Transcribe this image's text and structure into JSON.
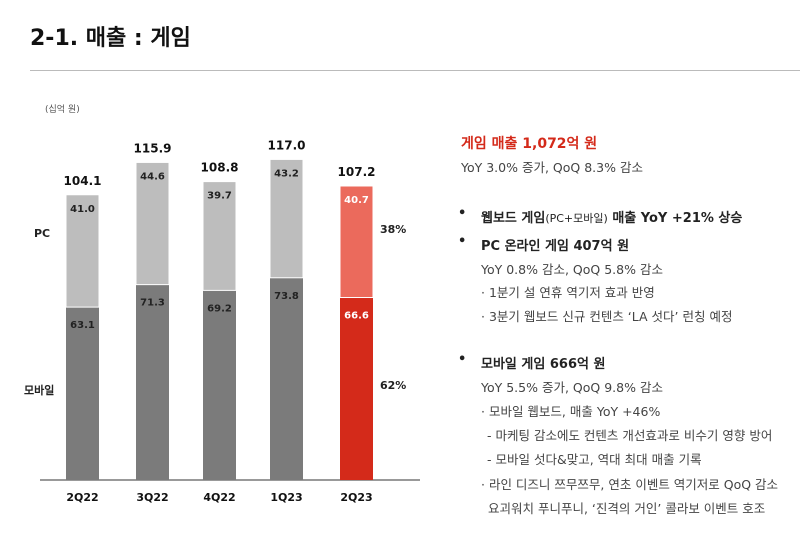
{
  "title": "2-1. 매출 : 게임",
  "chart_data": {
    "type": "bar",
    "stacked": true,
    "unit_label": "(십억 원)",
    "categories": [
      "2Q22",
      "3Q22",
      "4Q22",
      "1Q23",
      "2Q23"
    ],
    "series": [
      {
        "name": "모바일",
        "values": [
          63.1,
          71.3,
          69.2,
          73.8,
          66.6
        ]
      },
      {
        "name": "PC",
        "values": [
          41.0,
          44.6,
          39.7,
          43.2,
          40.7
        ]
      }
    ],
    "totals": [
      "104.1",
      "115.9",
      "108.8",
      "117.0",
      "107.2"
    ],
    "share_labels": {
      "pc": "38%",
      "mobile": "62%"
    },
    "colors": {
      "mobile": "#7b7b7b",
      "pc": "#bdbdbd",
      "mobile_highlight": "#d42a1a",
      "pc_highlight": "#eb6a5c"
    },
    "highlight_category": "2Q23",
    "ylim": [
      0,
      130
    ]
  },
  "summary": {
    "headline": "게임 매출 1,072억 원",
    "headline_sub": "YoY 3.0% 증가, QoQ 8.3% 감소",
    "web_board": {
      "bold": "웹보드 게임",
      "small": "(PC+모바일)",
      "rest": " 매출 YoY +21% 상승"
    },
    "pc": {
      "heading": "PC 온라인 게임 407억 원",
      "sub": "YoY 0.8% 감소, QoQ 5.8% 감소",
      "items": [
        "· 1분기 설 연휴 역기저 효과 반영",
        "· 3분기 웹보드 신규 컨텐츠 ‘LA 섯다’ 런칭 예정"
      ]
    },
    "mobile": {
      "heading": "모바일 게임 666억 원",
      "sub": "YoY 5.5% 증가, QoQ 9.8% 감소",
      "items": [
        "· 모바일 웹보드, 매출 YoY +46%",
        "- 마케팅 감소에도 컨텐츠 개선효과로 비수기 영향 방어",
        "- 모바일 섯다&맞고, 역대 최대 매출 기록",
        "· 라인 디즈니 쯔무쯔무, 연초 이벤트 역기저로 QoQ 감소",
        "요괴워치 푸니푸니, ‘진격의 거인’ 콜라보 이벤트 호조"
      ]
    }
  }
}
